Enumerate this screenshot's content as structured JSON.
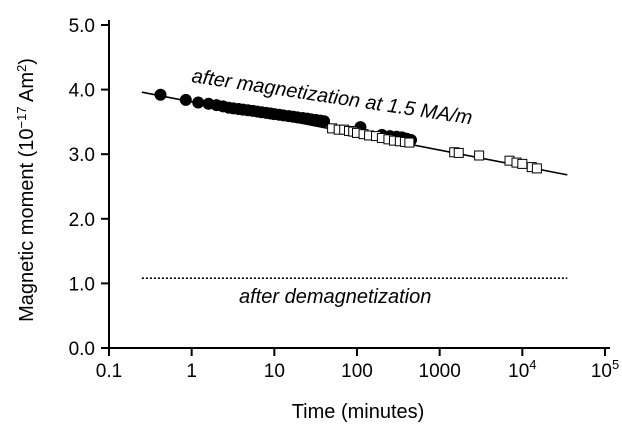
{
  "chart_data": {
    "type": "scatter",
    "xscale": "log",
    "xlim": [
      0.1,
      100000
    ],
    "ylim": [
      0.0,
      5.0
    ],
    "xlabel": "Time (minutes)",
    "ylabel_main": "Magnetic moment (10",
    "ylabel_exp": "−17",
    "ylabel_unit": " Am",
    "ylabel_unit_exp": "2",
    "ylabel_close": ")",
    "x_ticks": [
      {
        "v": 0.1,
        "label": "0.1",
        "exp": ""
      },
      {
        "v": 1,
        "label": "1",
        "exp": ""
      },
      {
        "v": 10,
        "label": "10",
        "exp": ""
      },
      {
        "v": 100,
        "label": "100",
        "exp": ""
      },
      {
        "v": 1000,
        "label": "1000",
        "exp": ""
      },
      {
        "v": 10000,
        "label": "10",
        "exp": "4"
      },
      {
        "v": 100000,
        "label": "10",
        "exp": "5"
      }
    ],
    "y_ticks": [
      {
        "v": 0.0,
        "label": "0.0"
      },
      {
        "v": 1.0,
        "label": "1.0"
      },
      {
        "v": 2.0,
        "label": "2.0"
      },
      {
        "v": 3.0,
        "label": "3.0"
      },
      {
        "v": 4.0,
        "label": "4.0"
      },
      {
        "v": 5.0,
        "label": "5.0"
      }
    ],
    "fit_line": {
      "x": [
        0.25,
        35000
      ],
      "y": [
        3.96,
        2.68
      ]
    },
    "demag_line": {
      "x": [
        0.25,
        35000
      ],
      "y": [
        1.08,
        1.08
      ]
    },
    "annotations": {
      "magnetization": "after magnetization at 1.5 MA/m",
      "demagnetization": "after demagnetization"
    },
    "series": [
      {
        "marker": "filled-circle",
        "x": [
          0.42,
          0.85,
          1.2,
          1.6,
          2.0,
          2.4,
          2.8,
          3.2,
          3.7,
          4.2,
          4.8,
          5.5,
          6.2,
          7.0,
          8.0,
          9.0,
          10,
          11.5,
          13,
          15,
          17,
          19,
          22,
          25,
          28,
          32,
          36,
          40,
          110,
          200,
          250,
          300,
          350,
          400,
          450
        ],
        "y": [
          3.92,
          3.84,
          3.8,
          3.78,
          3.76,
          3.74,
          3.72,
          3.71,
          3.7,
          3.69,
          3.68,
          3.67,
          3.66,
          3.65,
          3.64,
          3.63,
          3.62,
          3.61,
          3.6,
          3.59,
          3.58,
          3.57,
          3.56,
          3.55,
          3.54,
          3.53,
          3.52,
          3.51,
          3.42,
          3.3,
          3.28,
          3.27,
          3.26,
          3.24,
          3.22
        ]
      },
      {
        "marker": "open-square",
        "x": [
          50,
          60,
          70,
          80,
          90,
          100,
          120,
          140,
          170,
          200,
          240,
          280,
          330,
          380,
          430,
          1500,
          1700,
          3000,
          7000,
          8500,
          10000,
          13000,
          15000
        ],
        "y": [
          3.4,
          3.38,
          3.38,
          3.36,
          3.35,
          3.33,
          3.31,
          3.29,
          3.28,
          3.25,
          3.23,
          3.21,
          3.2,
          3.19,
          3.18,
          3.03,
          3.02,
          2.98,
          2.9,
          2.87,
          2.85,
          2.8,
          2.78
        ]
      }
    ]
  }
}
